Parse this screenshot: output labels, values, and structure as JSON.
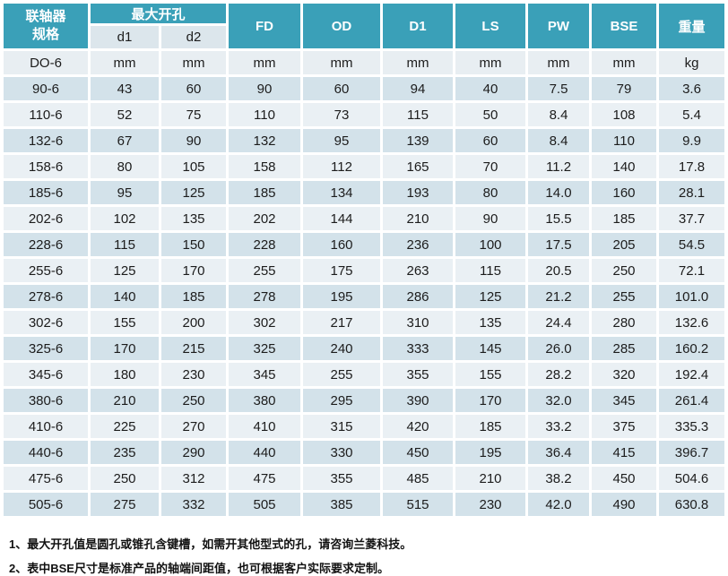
{
  "table": {
    "header": {
      "model_line1": "联轴器",
      "model_line2": "规格",
      "max_bore": "最大开孔",
      "sub_cols": [
        "d1",
        "d2"
      ],
      "dim_cols": [
        "FD",
        "OD",
        "D1",
        "LS",
        "PW",
        "BSE",
        "重量"
      ]
    },
    "units": [
      "DO-6",
      "mm",
      "mm",
      "mm",
      "mm",
      "mm",
      "mm",
      "mm",
      "mm",
      "kg"
    ],
    "rows": [
      [
        "90-6",
        "43",
        "60",
        "90",
        "60",
        "94",
        "40",
        "7.5",
        "79",
        "3.6"
      ],
      [
        "110-6",
        "52",
        "75",
        "110",
        "73",
        "115",
        "50",
        "8.4",
        "108",
        "5.4"
      ],
      [
        "132-6",
        "67",
        "90",
        "132",
        "95",
        "139",
        "60",
        "8.4",
        "110",
        "9.9"
      ],
      [
        "158-6",
        "80",
        "105",
        "158",
        "112",
        "165",
        "70",
        "11.2",
        "140",
        "17.8"
      ],
      [
        "185-6",
        "95",
        "125",
        "185",
        "134",
        "193",
        "80",
        "14.0",
        "160",
        "28.1"
      ],
      [
        "202-6",
        "102",
        "135",
        "202",
        "144",
        "210",
        "90",
        "15.5",
        "185",
        "37.7"
      ],
      [
        "228-6",
        "115",
        "150",
        "228",
        "160",
        "236",
        "100",
        "17.5",
        "205",
        "54.5"
      ],
      [
        "255-6",
        "125",
        "170",
        "255",
        "175",
        "263",
        "115",
        "20.5",
        "250",
        "72.1"
      ],
      [
        "278-6",
        "140",
        "185",
        "278",
        "195",
        "286",
        "125",
        "21.2",
        "255",
        "101.0"
      ],
      [
        "302-6",
        "155",
        "200",
        "302",
        "217",
        "310",
        "135",
        "24.4",
        "280",
        "132.6"
      ],
      [
        "325-6",
        "170",
        "215",
        "325",
        "240",
        "333",
        "145",
        "26.0",
        "285",
        "160.2"
      ],
      [
        "345-6",
        "180",
        "230",
        "345",
        "255",
        "355",
        "155",
        "28.2",
        "320",
        "192.4"
      ],
      [
        "380-6",
        "210",
        "250",
        "380",
        "295",
        "390",
        "170",
        "32.0",
        "345",
        "261.4"
      ],
      [
        "410-6",
        "225",
        "270",
        "410",
        "315",
        "420",
        "185",
        "33.2",
        "375",
        "335.3"
      ],
      [
        "440-6",
        "235",
        "290",
        "440",
        "330",
        "450",
        "195",
        "36.4",
        "415",
        "396.7"
      ],
      [
        "475-6",
        "250",
        "312",
        "475",
        "355",
        "485",
        "210",
        "38.2",
        "450",
        "504.6"
      ],
      [
        "505-6",
        "275",
        "332",
        "505",
        "385",
        "515",
        "230",
        "42.0",
        "490",
        "630.8"
      ]
    ]
  },
  "notes": [
    "1、最大开孔值是圆孔或锥孔含键槽，如需开其他型式的孔，请咨询兰菱科技。",
    "2、表中BSE尺寸是标准产品的轴端间距值，也可根据客户实际要求定制。"
  ],
  "colors": {
    "header_teal": "#3AA0B8",
    "subheader_bg": "#DCE6EC",
    "units_row_bg": "#E8EEF2",
    "row_dark": "#D3E2EA",
    "row_light": "#EAF0F4"
  }
}
